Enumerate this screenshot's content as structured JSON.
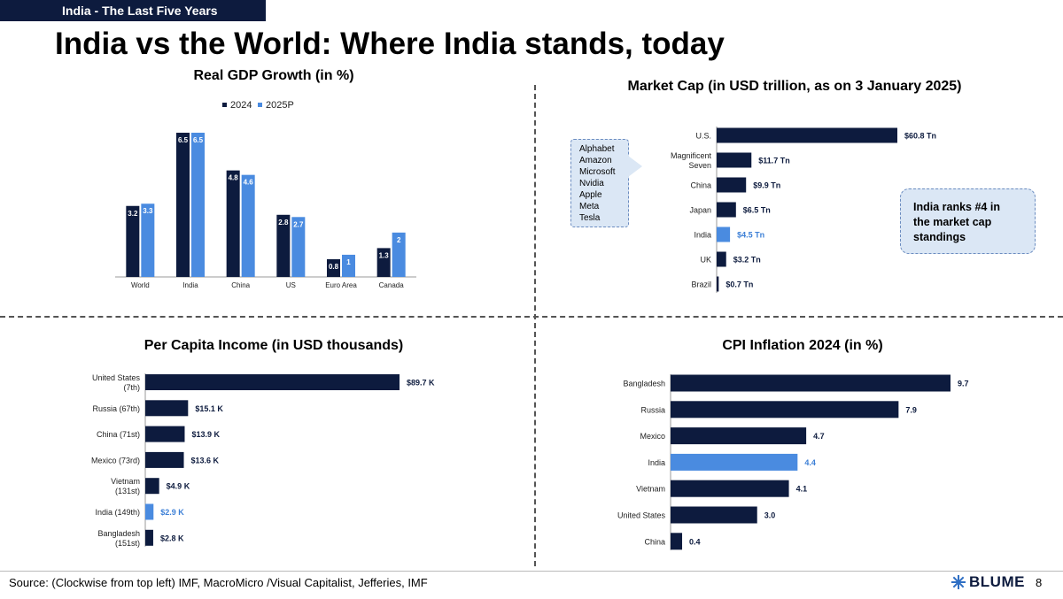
{
  "header": {
    "tag": "India - The Last Five Years",
    "title": "India vs the World: Where India stands, today"
  },
  "colors": {
    "dark": "#0d1b3e",
    "highlight": "#4a8be0",
    "highlight_text": "#3c7fd6"
  },
  "callout": {
    "items": [
      "Alphabet",
      "Amazon",
      "Microsoft",
      "Nvidia",
      "Apple",
      "Meta",
      "Tesla"
    ]
  },
  "rank_box": {
    "lines": [
      "India ranks #4 in",
      "the market cap",
      "standings"
    ]
  },
  "footer": {
    "source": "Source: (Clockwise from top left) IMF, MacroMicro /Visual Capitalist, Jefferies, IMF",
    "logo_text": "BLUME",
    "logo_icon": "blume-snowflake-icon",
    "page_number": "8"
  },
  "chart_data": [
    {
      "id": "gdp",
      "type": "bar",
      "title": "Real GDP Growth (in %)",
      "categories": [
        "World",
        "India",
        "China",
        "US",
        "Euro Area",
        "Canada"
      ],
      "series": [
        {
          "name": "2024",
          "values": [
            3.2,
            6.5,
            4.8,
            2.8,
            0.8,
            1.3
          ],
          "labels": [
            "3.2",
            "6.5",
            "4.8",
            "2.8",
            "0.8",
            "1.3"
          ]
        },
        {
          "name": "2025P",
          "values": [
            3.3,
            6.5,
            4.6,
            2.7,
            1,
            2
          ],
          "labels": [
            "3.3",
            "6.5",
            "4.6",
            "2.7",
            "1",
            "2"
          ]
        }
      ],
      "ylim": [
        0,
        7
      ]
    },
    {
      "id": "mcap",
      "type": "bar",
      "orientation": "horizontal",
      "title": "Market Cap (in USD trillion, as on 3 January 2025)",
      "categories": [
        [
          "U.S."
        ],
        [
          "Magnificent",
          "Seven"
        ],
        [
          "China"
        ],
        [
          "Japan"
        ],
        [
          "India"
        ],
        [
          "UK"
        ],
        [
          "Brazil"
        ]
      ],
      "values": [
        60.8,
        11.7,
        9.9,
        6.5,
        4.5,
        3.2,
        0.7
      ],
      "labels": [
        "$60.8 Tn",
        "$11.7 Tn",
        "$9.9 Tn",
        "$6.5 Tn",
        "$4.5 Tn",
        "$3.2 Tn",
        "$0.7 Tn"
      ],
      "highlight": "India"
    },
    {
      "id": "pci",
      "type": "bar",
      "orientation": "horizontal",
      "title": "Per Capita Income (in USD thousands)",
      "categories": [
        [
          "United States",
          "(7th)"
        ],
        [
          "Russia (67th)"
        ],
        [
          "China (71st)"
        ],
        [
          "Mexico (73rd)"
        ],
        [
          "Vietnam",
          "(131st)"
        ],
        [
          "India (149th)"
        ],
        [
          "Bangladesh",
          "(151st)"
        ]
      ],
      "values": [
        89.7,
        15.1,
        13.9,
        13.6,
        4.9,
        2.9,
        2.8
      ],
      "labels": [
        "$89.7 K",
        "$15.1 K",
        "$13.9 K",
        "$13.6 K",
        "$4.9 K",
        "$2.9 K",
        "$2.8 K"
      ],
      "highlight": "India (149th)"
    },
    {
      "id": "cpi",
      "type": "bar",
      "orientation": "horizontal",
      "title": "CPI Inflation 2024 (in %)",
      "categories": [
        [
          "Bangladesh"
        ],
        [
          "Russia"
        ],
        [
          "Mexico"
        ],
        [
          "India"
        ],
        [
          "Vietnam"
        ],
        [
          "United States"
        ],
        [
          "China"
        ]
      ],
      "values": [
        9.7,
        7.9,
        4.7,
        4.4,
        4.1,
        3.0,
        0.4
      ],
      "labels": [
        "9.7",
        "7.9",
        "4.7",
        "4.4",
        "4.1",
        "3.0",
        "0.4"
      ],
      "highlight": "India"
    }
  ]
}
